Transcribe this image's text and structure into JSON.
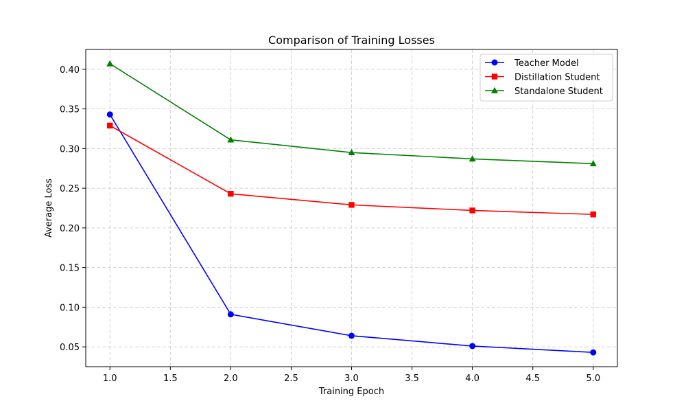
{
  "chart_data": {
    "type": "line",
    "title": "Comparison of Training Losses",
    "xlabel": "Training Epoch",
    "ylabel": "Average Loss",
    "x": [
      1,
      2,
      3,
      4,
      5
    ],
    "xlim": [
      0.8,
      5.2
    ],
    "ylim": [
      0.025,
      0.425
    ],
    "xticks": [
      "1.0",
      "1.5",
      "2.0",
      "2.5",
      "3.0",
      "3.5",
      "4.0",
      "4.5",
      "5.0"
    ],
    "yticks": [
      "0.05",
      "0.10",
      "0.15",
      "0.20",
      "0.25",
      "0.30",
      "0.35",
      "0.40"
    ],
    "grid": true,
    "legend_position": "top-right",
    "series": [
      {
        "name": "Teacher Model",
        "color": "#0000ff",
        "marker": "circle",
        "values": [
          0.343,
          0.091,
          0.064,
          0.051,
          0.043
        ]
      },
      {
        "name": "Distillation Student",
        "color": "#ff0000",
        "marker": "square",
        "values": [
          0.329,
          0.243,
          0.229,
          0.222,
          0.217
        ]
      },
      {
        "name": "Standalone Student",
        "color": "#008000",
        "marker": "triangle",
        "values": [
          0.407,
          0.311,
          0.295,
          0.287,
          0.281
        ]
      }
    ]
  }
}
